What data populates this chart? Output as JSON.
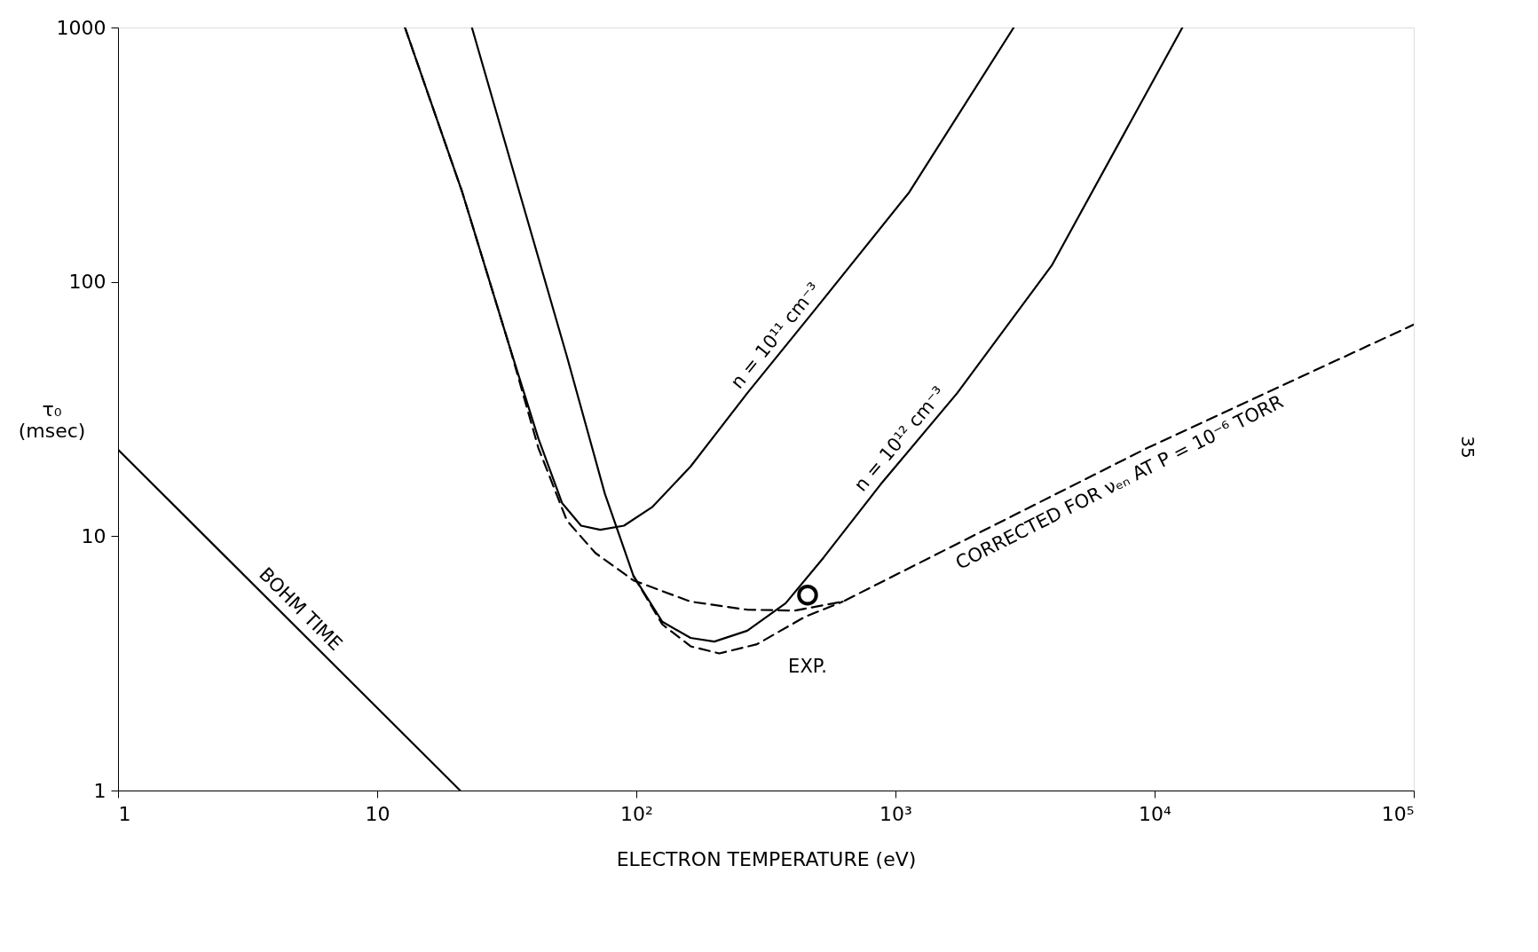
{
  "chart_data": {
    "type": "line",
    "xlabel": "ELECTRON TEMPERATURE (eV)",
    "ylabel": "τ₀ (msec)",
    "log": "xy",
    "grid": false,
    "marker": "none",
    "xlim": [
      1,
      100000
    ],
    "ylim": [
      1,
      1000
    ],
    "xticks": [
      1,
      10,
      {
        "value": 100,
        "label": "10²"
      },
      {
        "value": 1000,
        "label": "10³"
      },
      {
        "value": 10000,
        "label": "10⁴"
      },
      {
        "value": 100000,
        "label": "10⁵"
      }
    ],
    "yticks": [
      1,
      10,
      100,
      1000
    ],
    "series": [
      {
        "name": "BOHM TIME",
        "color": "#000000",
        "line_style": "solid",
        "x": [
          1,
          20.9
        ],
        "values": [
          21.9,
          1
        ]
      },
      {
        "name": "n = 10¹¹ cm⁻³",
        "color": "#000000",
        "line_style": "solid",
        "x": [
          12.8,
          21.3,
          32.5,
          41.9,
          51.7,
          61.2,
          72.6,
          89.6,
          115,
          162,
          268,
          485,
          1130,
          2860
        ],
        "values": [
          1000,
          225,
          55.2,
          24.2,
          13.5,
          11.0,
          10.6,
          11.0,
          13.0,
          18.8,
          36.5,
          76.9,
          225,
          1000
        ]
      },
      {
        "name": "n = 10¹² cm⁻³",
        "color": "#000000",
        "line_style": "solid",
        "x": [
          23.2,
          35.4,
          54.0,
          75.6,
          97.5,
          126,
          162,
          200,
          268,
          377,
          528,
          877,
          1730,
          4010,
          12800
        ],
        "values": [
          1000,
          225,
          50.8,
          14.7,
          6.98,
          4.61,
          3.98,
          3.85,
          4.25,
          5.45,
          8.24,
          16.0,
          36.5,
          116,
          1000
        ]
      },
      {
        "name": "CORRECTED FOR νₑₙ AT P = 10⁻⁶ TORR",
        "color": "#000000",
        "line_style": "dashed",
        "x": [
          12.8,
          21.3,
          32.5,
          41.9,
          54.0,
          69.5,
          97.5,
          162,
          268,
          410,
          626,
          1730,
          9350,
          100000
        ],
        "values": [
          1000,
          225,
          55.2,
          22.2,
          11.5,
          8.59,
          6.7,
          5.53,
          5.14,
          5.1,
          5.53,
          9.33,
          22.2,
          67.9
        ]
      },
      {
        "color": "#000000",
        "line_style": "dashed",
        "x": [
          97.5,
          126,
          162,
          209,
          292,
          446,
          626
        ],
        "values": [
          6.98,
          4.5,
          3.69,
          3.46,
          3.76,
          4.81,
          5.53
        ]
      },
      {
        "type": "scatter",
        "color": "#000000",
        "marker": "circle",
        "x": [
          458
        ],
        "values": [
          5.87
        ]
      }
    ],
    "annotations": [
      "EXP.",
      "35"
    ]
  }
}
